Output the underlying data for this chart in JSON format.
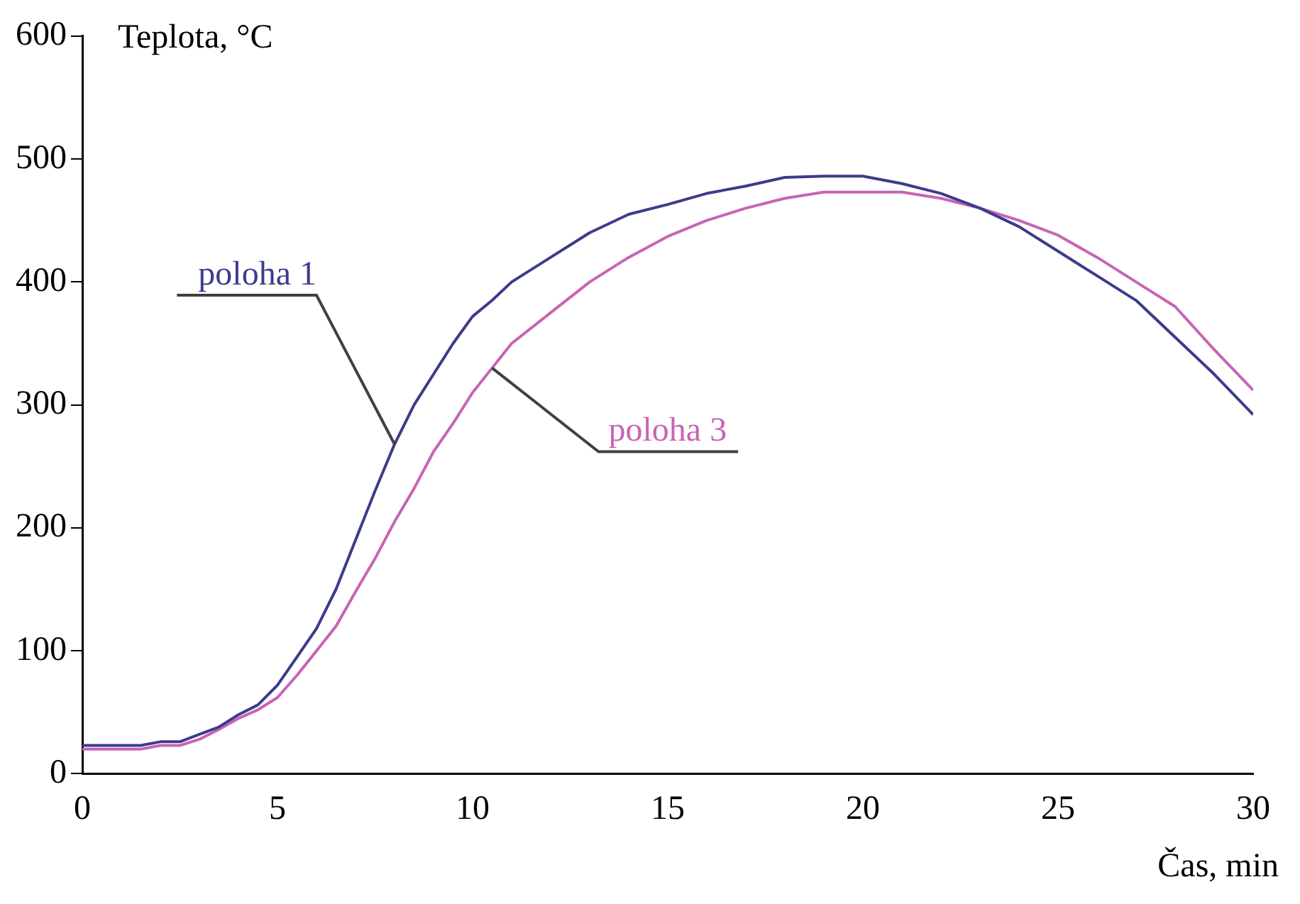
{
  "chart_data": {
    "type": "line",
    "xlabel": "Čas, min",
    "ylabel": "Teplota, °C",
    "xlim": [
      0,
      30
    ],
    "xticks": [
      0,
      5,
      10,
      15,
      20,
      25,
      30
    ],
    "ylim": [
      0,
      600
    ],
    "yticks": [
      0,
      100,
      200,
      300,
      400,
      500,
      600
    ],
    "grid": false,
    "legend": false,
    "marker": "none",
    "line_style": "solid",
    "x": [
      0,
      1.5,
      2,
      2.5,
      3,
      3.5,
      4,
      4.5,
      5,
      5.5,
      6,
      6.5,
      7,
      7.5,
      8,
      8.5,
      9,
      9.5,
      10,
      10.5,
      11,
      12,
      13,
      14,
      15,
      16,
      17,
      18,
      19,
      20,
      21,
      22,
      23,
      24,
      25,
      26,
      27,
      28,
      29,
      30
    ],
    "series": [
      {
        "name": "poloha 1",
        "color": "#3c3c8c",
        "values": [
          23,
          23,
          26,
          26,
          32,
          38,
          48,
          56,
          72,
          95,
          118,
          150,
          190,
          230,
          268,
          300,
          325,
          350,
          372,
          385,
          400,
          420,
          440,
          455,
          463,
          472,
          478,
          485,
          486,
          486,
          480,
          472,
          460,
          445,
          425,
          405,
          385,
          355,
          325,
          292
        ]
      },
      {
        "name": "poloha 3",
        "color": "#c864b4",
        "values": [
          20,
          20,
          23,
          23,
          28,
          36,
          45,
          52,
          62,
          80,
          100,
          120,
          148,
          175,
          205,
          232,
          262,
          285,
          310,
          330,
          350,
          375,
          400,
          420,
          437,
          450,
          460,
          468,
          473,
          473,
          473,
          468,
          460,
          450,
          438,
          420,
          400,
          380,
          345,
          312
        ]
      }
    ]
  }
}
